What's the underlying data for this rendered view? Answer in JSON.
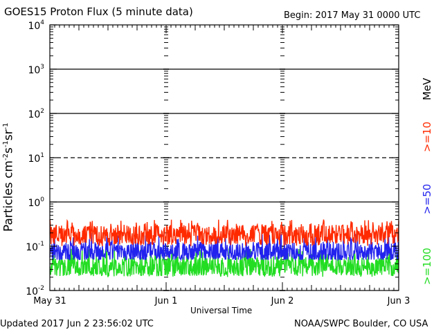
{
  "header": {
    "title": "GOES15 Proton Flux (5 minute data)",
    "begin": "Begin: 2017 May 31 0000 UTC"
  },
  "footer": {
    "updated": "Updated 2017 Jun  2 23:56:02 UTC",
    "credit": "NOAA/SWPC Boulder, CO USA"
  },
  "legend": {
    "unit": "MeV",
    "ge10": ">=10",
    "ge50": ">=50",
    "ge100": ">=100"
  },
  "colors": {
    "ge10": "#ff2a00",
    "ge50": "#2222ee",
    "ge100": "#22dd22",
    "axis": "#000000"
  },
  "chart_data": {
    "type": "line",
    "title": "GOES15 Proton Flux (5 minute data)",
    "xlabel": "Universal Time",
    "ylabel": "Particles cm-2s-1sr-1",
    "yscale": "log",
    "ylim": [
      0.01,
      10000
    ],
    "yticks": [
      {
        "base": "10",
        "exp": "-2"
      },
      {
        "base": "10",
        "exp": "-1"
      },
      {
        "base": "10",
        "exp": "0"
      },
      {
        "base": "10",
        "exp": "1"
      },
      {
        "base": "10",
        "exp": "2"
      },
      {
        "base": "10",
        "exp": "3"
      },
      {
        "base": "10",
        "exp": "4"
      }
    ],
    "xticks": [
      "May 31",
      "Jun 1",
      "Jun 2",
      "Jun 3"
    ],
    "xlim": [
      "2017-05-31",
      "2017-06-03"
    ],
    "reference_lines": [
      {
        "y": 1,
        "style": "solid"
      },
      {
        "y": 10,
        "style": "dashed"
      },
      {
        "y": 100,
        "style": "solid"
      },
      {
        "y": 1000,
        "style": "solid"
      }
    ],
    "series": [
      {
        "name": ">=10 MeV",
        "color": "#ff2a00",
        "typical": 0.18,
        "min": 0.1,
        "max": 0.4
      },
      {
        "name": ">=50 MeV",
        "color": "#2222ee",
        "typical": 0.075,
        "min": 0.05,
        "max": 0.2
      },
      {
        "name": ">=100 MeV",
        "color": "#22dd22",
        "typical": 0.035,
        "min": 0.02,
        "max": 0.09
      }
    ]
  }
}
